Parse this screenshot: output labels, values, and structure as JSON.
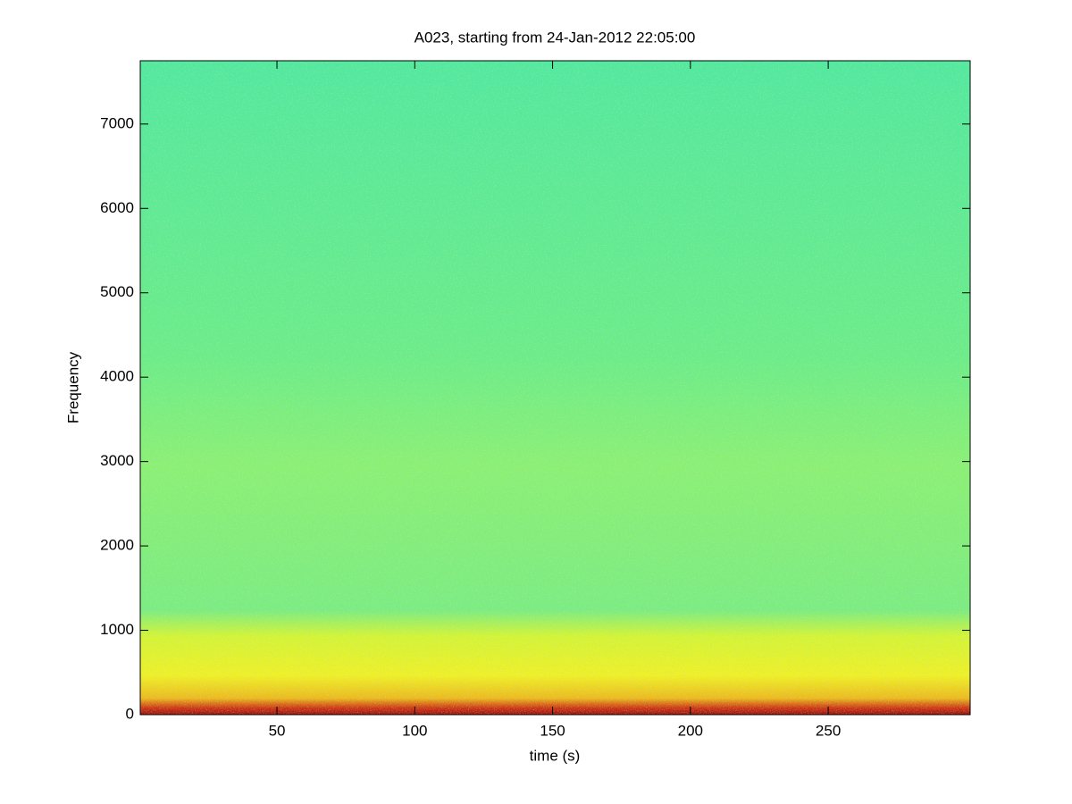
{
  "chart_data": {
    "type": "spectrogram",
    "title": "A023, starting from 24-Jan-2012 22:05:00",
    "x_label": "time (s)",
    "y_label": "Frequency",
    "xlim": [
      0.4,
      301.5
    ],
    "ylim": [
      0,
      7750
    ],
    "xticks": [
      50,
      100,
      150,
      200,
      250
    ],
    "yticks": [
      0,
      1000,
      2000,
      3000,
      4000,
      5000,
      6000,
      7000
    ]
  }
}
